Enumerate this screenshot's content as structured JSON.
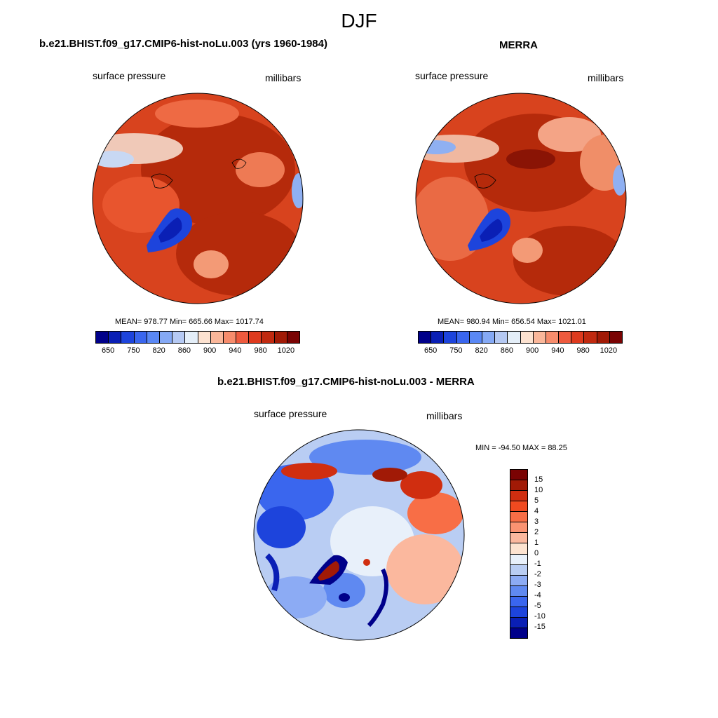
{
  "title": "DJF",
  "panels": [
    {
      "heading": "b.e21.BHIST.f09_g17.CMIP6-hist-noLu.003 (yrs 1960-1984)",
      "variable": "surface pressure",
      "units": "millibars",
      "stats": "MEAN= 978.77  Min= 665.66  Max= 1017.74"
    },
    {
      "heading": "MERRA",
      "variable": "surface pressure",
      "units": "millibars",
      "stats": "MEAN= 980.94  Min= 656.54  Max= 1021.01"
    }
  ],
  "abs_colorbar": {
    "colors": [
      "#00008a",
      "#0a1fb5",
      "#1d44dc",
      "#3a66ee",
      "#5a88f5",
      "#85a9f5",
      "#b5c9f3",
      "#e4eef8",
      "#fde2d0",
      "#fbb79a",
      "#f78c6c",
      "#ee5a3e",
      "#de3a1e",
      "#c12a10",
      "#a11a06",
      "#7a0303"
    ],
    "tick_labels": [
      "650",
      "750",
      "820",
      "860",
      "900",
      "940",
      "980",
      "1020"
    ]
  },
  "diff_panel": {
    "heading": "b.e21.BHIST.f09_g17.CMIP6-hist-noLu.003 - MERRA",
    "variable": "surface pressure",
    "units": "millibars",
    "stats": "MIN = -94.50 MAX =  88.25"
  },
  "diff_colorbar": {
    "colors": [
      "#7a0303",
      "#a11a06",
      "#d02e10",
      "#f04a20",
      "#f86e46",
      "#fa9372",
      "#fbb89e",
      "#fde3d0",
      "#e8f0fa",
      "#b9cdf3",
      "#8cabf4",
      "#5f89f1",
      "#3a66ee",
      "#1d44dc",
      "#0a1fb5",
      "#00008a"
    ],
    "tick_labels": [
      "15",
      "10",
      "5",
      "4",
      "3",
      "2",
      "1",
      "0",
      "-1",
      "-2",
      "-3",
      "-4",
      "-5",
      "-10",
      "-15"
    ]
  }
}
